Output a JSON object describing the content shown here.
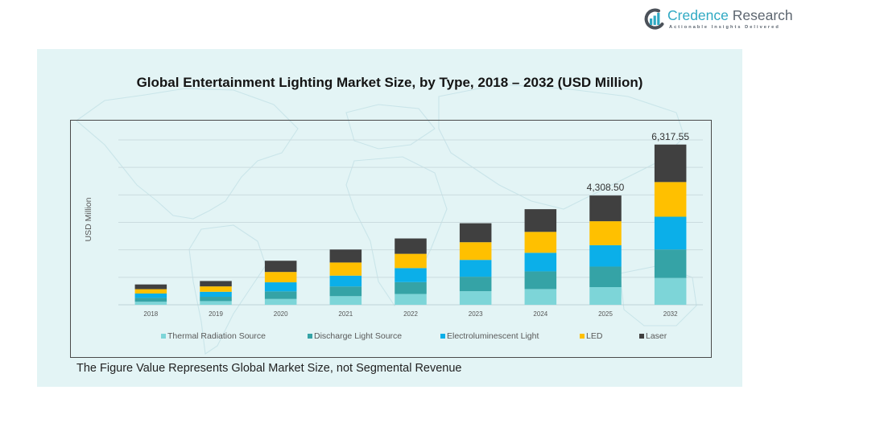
{
  "logo": {
    "brand_primary": "Credence",
    "brand_secondary": "Research",
    "tagline": "Actionable Insights Delivered",
    "icon": "credence-research-logo-icon",
    "colors": {
      "primary": "#2fa9c3",
      "secondary": "#5d6670"
    }
  },
  "chart_data": {
    "type": "bar",
    "stacked": true,
    "title": "Global Entertainment Lighting Market Size, by Type, 2018 – 2032 (USD Million)",
    "xlabel": "",
    "ylabel": "USD Million",
    "ylim": [
      0,
      6500
    ],
    "grid": true,
    "legend_position": "bottom",
    "categories": [
      "2018",
      "2019",
      "2020",
      "2021",
      "2022",
      "2023",
      "2024",
      "2025",
      "2032"
    ],
    "series": [
      {
        "name": "Thermal Radiation Source",
        "color": "#7dd5d8",
        "values": [
          120.0,
          145.6,
          229.9,
          339.7,
          426.5,
          536.3,
          620.6,
          697.2,
          1056.8
        ]
      },
      {
        "name": "Discharge Light Source",
        "color": "#35a3a6",
        "values": [
          153.2,
          171.1,
          298.8,
          383.1,
          467.4,
          569.5,
          697.2,
          809.6,
          1124.2
        ]
      },
      {
        "name": "Electroluminescent Light",
        "color": "#0bafe9",
        "values": [
          171.1,
          196.7,
          357.6,
          426.5,
          554.2,
          664.0,
          733.0,
          842.8,
          1291.0
        ]
      },
      {
        "name": "LED",
        "color": "#ffc000",
        "values": [
          171.1,
          212.0,
          408.6,
          518.5,
          561.9,
          697.2,
          824.9,
          945.0,
          1367.8
        ]
      },
      {
        "name": "Laser",
        "color": "#404040",
        "values": [
          186.4,
          212.0,
          441.8,
          510.8,
          605.3,
          748.3,
          893.9,
          1013.9,
          1477.8
        ]
      }
    ],
    "data_labels": [
      {
        "category": "2025",
        "value": 4308.5,
        "text": "4,308.50"
      },
      {
        "category": "2032",
        "value": 6317.55,
        "text": "6,317.55"
      }
    ],
    "annotations": [
      "The Figure Value Represents Global Market Size, not Segmental Revenue"
    ]
  }
}
